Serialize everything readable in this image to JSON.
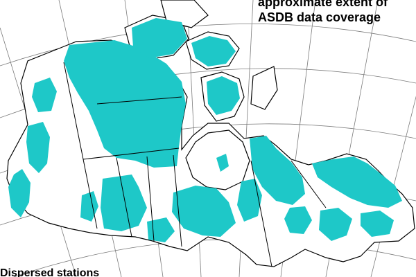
{
  "map": {
    "title_line1": "approximate extent of",
    "title_line2": "ASDB data coverage",
    "bottom_note": "Dispersed stations",
    "colors": {
      "coverage": "#1ec8c8",
      "land": "#ffffff",
      "outline": "#000000",
      "graticule": "#7a7a7a",
      "background": "#ffffff"
    },
    "icons": [
      "coverage-region",
      "graticule-line",
      "coastline",
      "province-border"
    ]
  }
}
